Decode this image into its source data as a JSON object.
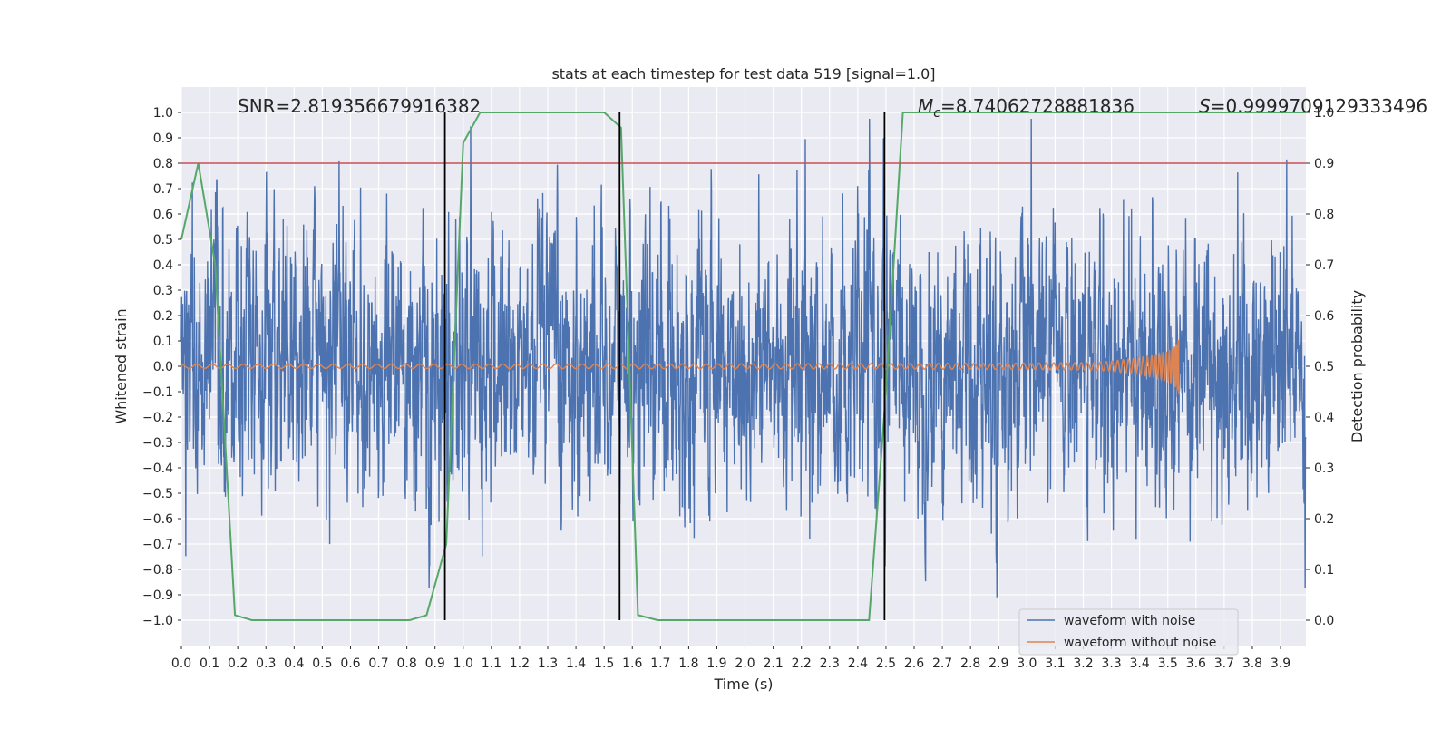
{
  "chart_data": {
    "type": "line",
    "title": "stats at each timestep for test data 519 [signal=1.0]",
    "xlabel": "Time (s)",
    "ylabel": "Whitened strain",
    "y2label": "Detection probability",
    "xlim": [
      0.0,
      3.99
    ],
    "ylim": [
      -1.1,
      1.1
    ],
    "y2lim": [
      -0.05,
      1.05
    ],
    "x_ticks": [
      0.0,
      0.1,
      0.2,
      0.3,
      0.4,
      0.5,
      0.6,
      0.7,
      0.8,
      0.9,
      1.0,
      1.1,
      1.2,
      1.3,
      1.4,
      1.5,
      1.6,
      1.7,
      1.8,
      1.9,
      2.0,
      2.1,
      2.2,
      2.3,
      2.4,
      2.5,
      2.6,
      2.7,
      2.8,
      2.9,
      3.0,
      3.1,
      3.2,
      3.3,
      3.4,
      3.5,
      3.6,
      3.7,
      3.8,
      3.9
    ],
    "x_tick_labels": [
      "0.0",
      "0.1",
      "0.2",
      "0.3",
      "0.4",
      "0.5",
      "0.6",
      "0.7",
      "0.8",
      "0.9",
      "1.0",
      "1.1",
      "1.2",
      "1.3",
      "1.4",
      "1.5",
      "1.6",
      "1.7",
      "1.8",
      "1.9",
      "2.0",
      "2.1",
      "2.2",
      "2.3",
      "2.4",
      "2.5",
      "2.6",
      "2.7",
      "2.8",
      "2.9",
      "3.0",
      "3.1",
      "3.2",
      "3.3",
      "3.4",
      "3.5",
      "3.6",
      "3.7",
      "3.8",
      "3.9"
    ],
    "y_ticks": [
      -1.0,
      -0.9,
      -0.8,
      -0.7,
      -0.6,
      -0.5,
      -0.4,
      -0.3,
      -0.2,
      -0.1,
      0.0,
      0.1,
      0.2,
      0.3,
      0.4,
      0.5,
      0.6,
      0.7,
      0.8,
      0.9,
      1.0
    ],
    "y_tick_labels": [
      "−1.0",
      "−0.9",
      "−0.8",
      "−0.7",
      "−0.6",
      "−0.5",
      "−0.4",
      "−0.3",
      "−0.2",
      "−0.1",
      "0.0",
      "0.1",
      "0.2",
      "0.3",
      "0.4",
      "0.5",
      "0.6",
      "0.7",
      "0.8",
      "0.9",
      "1.0"
    ],
    "y2_ticks": [
      0.0,
      0.1,
      0.2,
      0.3,
      0.4,
      0.5,
      0.6,
      0.7,
      0.8,
      0.9,
      1.0
    ],
    "y2_tick_labels": [
      "0.0",
      "0.1",
      "0.2",
      "0.3",
      "0.4",
      "0.5",
      "0.6",
      "0.7",
      "0.8",
      "0.9",
      "1.0"
    ],
    "grid": true,
    "legend_position": "bottom-right",
    "series": [
      {
        "name": "waveform with noise",
        "color": "#4c72b0",
        "axis": "left",
        "x_range": [
          0.0,
          4.0
        ],
        "samples": 4096,
        "amplitude_envelope": 0.75
      },
      {
        "name": "waveform without noise",
        "color": "#dd8452",
        "axis": "left",
        "chirp": {
          "t_start": 0.0,
          "t_merger": 3.54,
          "amp_start": 0.008,
          "amp_peak": 0.11
        }
      },
      {
        "name": "",
        "color": "#55a868",
        "axis": "right",
        "x": [
          0.0,
          0.06,
          0.12,
          0.19,
          0.25,
          0.31,
          0.37,
          0.44,
          0.5,
          0.56,
          0.62,
          0.69,
          0.75,
          0.81,
          0.87,
          0.94,
          1.0,
          1.06,
          1.12,
          1.19,
          1.25,
          1.31,
          1.37,
          1.44,
          1.5,
          1.56,
          1.62,
          1.69,
          1.75,
          1.81,
          1.87,
          1.94,
          2.0,
          2.06,
          2.12,
          2.19,
          2.25,
          2.31,
          2.37,
          2.44,
          2.5,
          2.56,
          2.62,
          2.69,
          2.75,
          2.81,
          2.87,
          2.94,
          3.0,
          3.06,
          3.12,
          3.19,
          3.25,
          3.31,
          3.37,
          3.44,
          3.5,
          3.56,
          3.62,
          3.69,
          3.75,
          3.81,
          3.87,
          3.94,
          3.99
        ],
        "y": [
          0.75,
          0.9,
          0.7,
          0.01,
          0.0,
          0.0,
          0.0,
          0.0,
          0.0,
          0.0,
          0.0,
          0.0,
          0.0,
          0.0,
          0.01,
          0.15,
          0.94,
          1.0,
          1.0,
          1.0,
          1.0,
          1.0,
          1.0,
          1.0,
          1.0,
          0.97,
          0.01,
          0.0,
          0.0,
          0.0,
          0.0,
          0.0,
          0.0,
          0.0,
          0.0,
          0.0,
          0.0,
          0.0,
          0.0,
          0.0,
          0.45,
          1.0,
          1.0,
          1.0,
          1.0,
          1.0,
          1.0,
          1.0,
          1.0,
          1.0,
          1.0,
          1.0,
          1.0,
          1.0,
          1.0,
          1.0,
          1.0,
          1.0,
          1.0,
          1.0,
          1.0,
          1.0,
          1.0,
          1.0,
          1.0
        ]
      }
    ],
    "threshold": {
      "y": 0.8,
      "axis": "left",
      "color": "#c44e52"
    },
    "vlines": [
      0.935,
      1.555,
      2.495
    ],
    "vline_color": "#000000",
    "annotations": {
      "snr": "SNR=2.819356679916382",
      "mc_symbol": "M",
      "mc_subscript": "c",
      "mc_value": "=8.74062728881836",
      "s_symbol": "S",
      "s_value": "=0.9999709129333496"
    }
  }
}
